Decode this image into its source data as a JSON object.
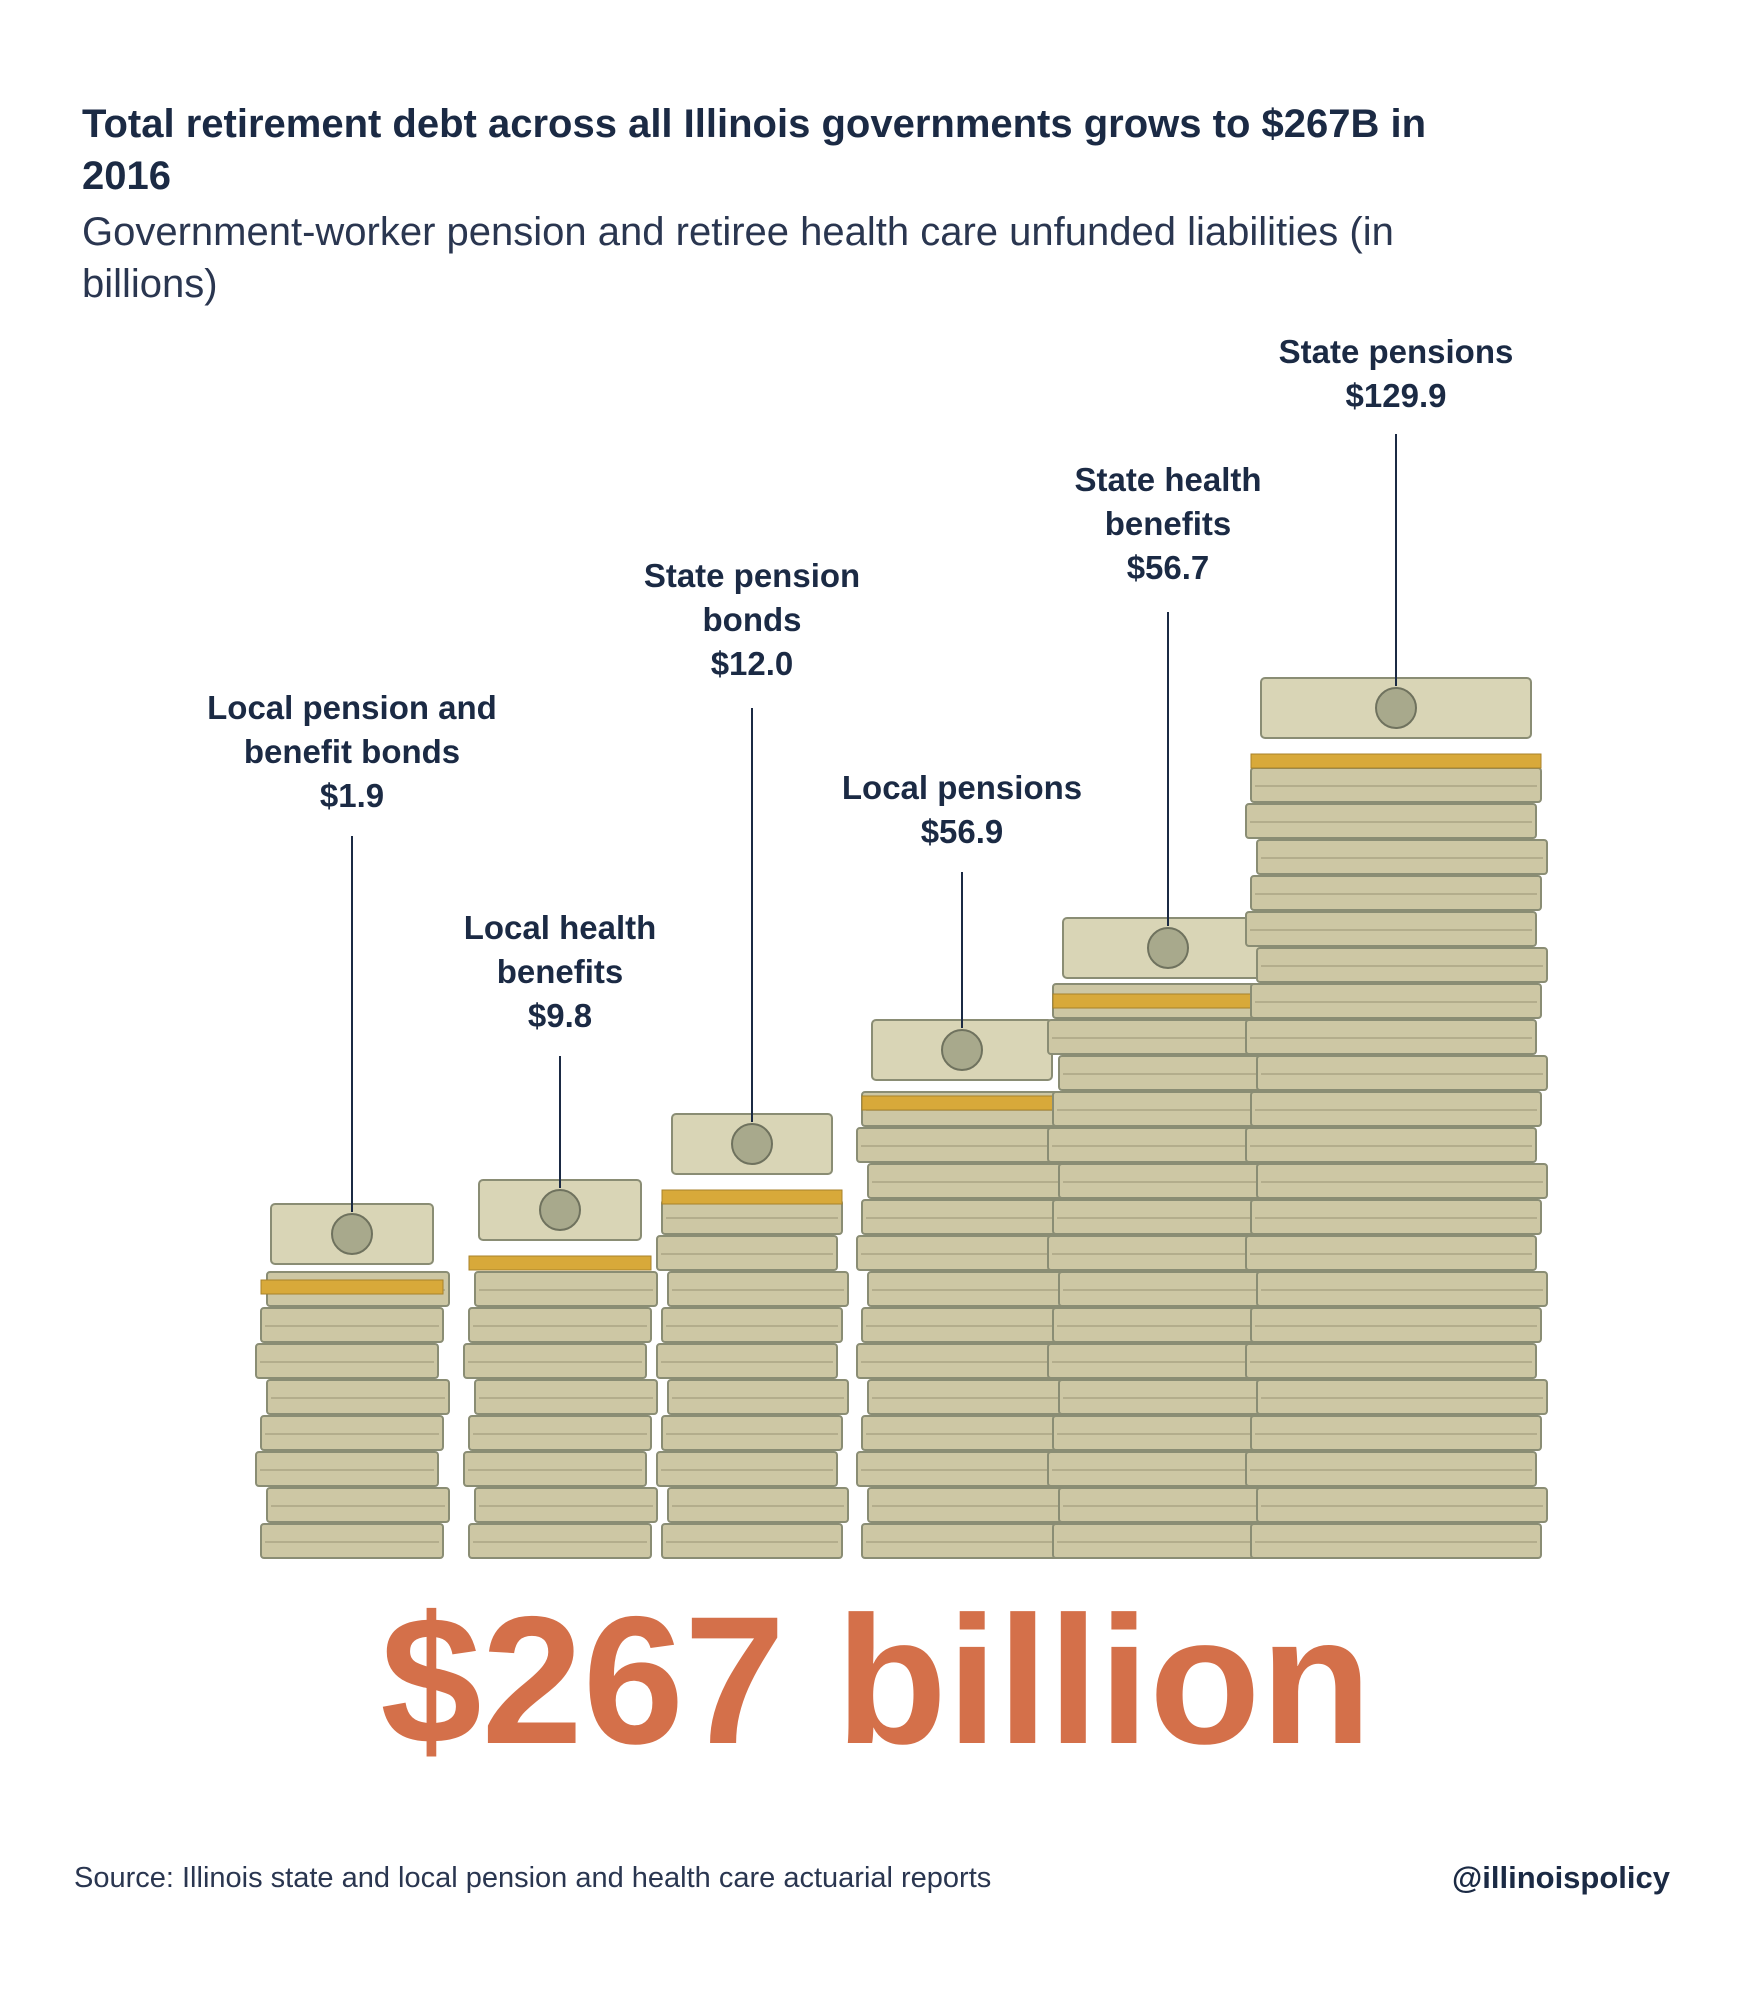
{
  "title": "Total retirement debt across all Illinois governments grows to $267B in 2016",
  "subtitle": "Government-worker pension and retiree health care unfunded liabilities (in billions)",
  "total_label": "$267 billion",
  "source": "Source: Illinois state and local pension and health care actuarial reports",
  "handle": "@illinoispolicy",
  "colors": {
    "title": "#1b2a44",
    "total": "#d4704a",
    "bill": "#cdc7a4",
    "bill_dark": "#8a8d74",
    "band": "#d8a93a"
  },
  "chart_data": {
    "type": "bar",
    "unit": "billions of dollars",
    "categories": [
      "Local pension and benefit bonds",
      "Local health benefits",
      "State pension bonds",
      "Local pensions",
      "State health benefits",
      "State pensions"
    ],
    "values": [
      1.9,
      9.8,
      12.0,
      56.9,
      56.7,
      129.9
    ],
    "value_labels": [
      "$1.9",
      "$9.8",
      "$12.0",
      "$56.9",
      "$56.7",
      "$129.9"
    ],
    "label_lines": [
      [
        "Local pension and",
        "benefit bonds"
      ],
      [
        "Local health",
        "benefits"
      ],
      [
        "State pension",
        "bonds"
      ],
      [
        "Local pensions"
      ],
      [
        "State health",
        "benefits"
      ],
      [
        "State pensions"
      ]
    ],
    "total": 267,
    "grid": false,
    "legend": "none"
  }
}
